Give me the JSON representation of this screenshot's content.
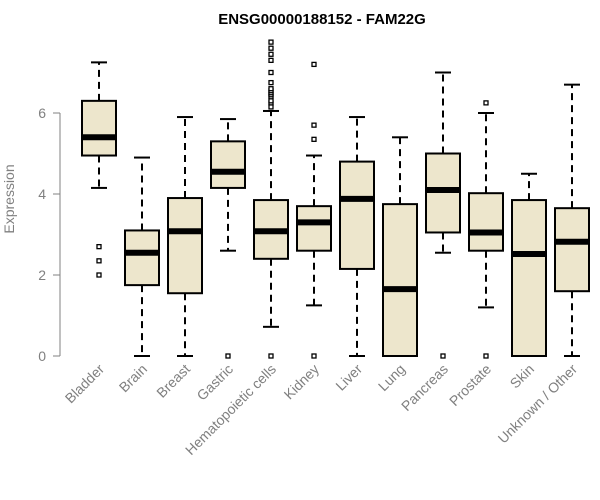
{
  "chart_data": {
    "type": "boxplot",
    "title": "ENSG00000188152 - FAM22G",
    "xlabel": "",
    "ylabel": "Expression",
    "ylim": [
      0,
      7.8
    ],
    "yticks": [
      0,
      2,
      4,
      6
    ],
    "ytick_labels": [
      "0",
      "2",
      "4",
      "6"
    ],
    "grid": false,
    "colors": {
      "box_fill": "#ede6cc",
      "box_stroke": "#000000",
      "median": "#000000",
      "axis": "#808080"
    },
    "categories": [
      "Bladder",
      "Brain",
      "Breast",
      "Gastric",
      "Hematopoietic cells",
      "Kidney",
      "Liver",
      "Lung",
      "Pancreas",
      "Prostate",
      "Skin",
      "Unknown / Other"
    ],
    "boxes": [
      {
        "q1": 4.95,
        "median": 5.4,
        "q3": 6.3,
        "whisker_low": 4.15,
        "whisker_high": 7.25,
        "outliers": [
          2.7,
          2.35,
          2.0
        ]
      },
      {
        "q1": 1.75,
        "median": 2.55,
        "q3": 3.1,
        "whisker_low": 0.0,
        "whisker_high": 4.9,
        "outliers": []
      },
      {
        "q1": 1.55,
        "median": 3.08,
        "q3": 3.9,
        "whisker_low": 0.0,
        "whisker_high": 5.9,
        "outliers": []
      },
      {
        "q1": 4.15,
        "median": 4.55,
        "q3": 5.3,
        "whisker_low": 2.6,
        "whisker_high": 5.85,
        "outliers": [
          0.0
        ]
      },
      {
        "q1": 2.4,
        "median": 3.08,
        "q3": 3.85,
        "whisker_low": 0.72,
        "whisker_high": 6.05,
        "outliers": [
          0.0,
          6.15,
          6.25,
          6.3,
          6.4,
          6.45,
          6.5,
          6.55,
          6.6,
          6.75,
          7.0,
          7.3,
          7.45,
          7.6,
          7.75
        ]
      },
      {
        "q1": 2.6,
        "median": 3.3,
        "q3": 3.7,
        "whisker_low": 1.25,
        "whisker_high": 4.95,
        "outliers": [
          0.0,
          5.35,
          5.7,
          7.2
        ]
      },
      {
        "q1": 2.15,
        "median": 3.88,
        "q3": 4.8,
        "whisker_low": 0.0,
        "whisker_high": 5.9,
        "outliers": []
      },
      {
        "q1": 0.0,
        "median": 1.65,
        "q3": 3.75,
        "whisker_low": 0.0,
        "whisker_high": 5.4,
        "outliers": []
      },
      {
        "q1": 3.05,
        "median": 4.1,
        "q3": 5.0,
        "whisker_low": 2.55,
        "whisker_high": 7.0,
        "outliers": [
          0.0
        ]
      },
      {
        "q1": 2.6,
        "median": 3.05,
        "q3": 4.02,
        "whisker_low": 1.2,
        "whisker_high": 6.0,
        "outliers": [
          0.0,
          6.25
        ]
      },
      {
        "q1": 0.0,
        "median": 2.52,
        "q3": 3.85,
        "whisker_low": 0.0,
        "whisker_high": 4.5,
        "outliers": []
      },
      {
        "q1": 1.6,
        "median": 2.82,
        "q3": 3.65,
        "whisker_low": 0.0,
        "whisker_high": 6.7,
        "outliers": []
      }
    ]
  }
}
